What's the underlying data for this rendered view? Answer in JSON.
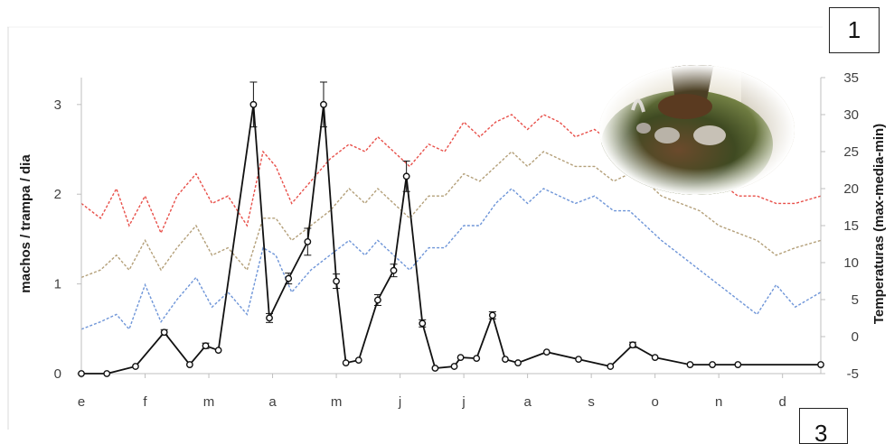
{
  "panel_labels": {
    "top_right": "1",
    "bottom_right": "3"
  },
  "photo_inset": {
    "icon": "trunk-photo-icon",
    "description_shown": false
  },
  "chart_data": {
    "type": "line",
    "title": "",
    "xlabel": "",
    "ylabel": "machos / trampa / dia",
    "y2label": "Temperaturas (max-media-min)",
    "ylim": [
      0,
      3.3
    ],
    "y2lim": [
      -5,
      35
    ],
    "yticks": [
      0,
      1,
      2,
      3
    ],
    "y2ticks": [
      -5,
      0,
      5,
      10,
      15,
      20,
      25,
      30,
      35
    ],
    "month_labels": [
      "e",
      "f",
      "m",
      "a",
      "m",
      "j",
      "j",
      "a",
      "s",
      "o",
      "n",
      "d"
    ],
    "xlim": [
      0,
      11.6
    ],
    "grid": false,
    "legend": "none",
    "captures": {
      "name": "",
      "color": "#111111",
      "x": [
        0,
        0.4,
        0.85,
        1.3,
        1.7,
        1.95,
        2.15,
        2.7,
        2.95,
        3.25,
        3.55,
        3.8,
        4.0,
        4.15,
        4.35,
        4.65,
        4.9,
        5.1,
        5.35,
        5.55,
        5.85,
        5.95,
        6.2,
        6.45,
        6.65,
        6.85,
        7.3,
        7.8,
        8.3,
        8.65,
        9.0,
        9.55,
        9.9,
        10.3,
        11.6
      ],
      "y": [
        0,
        0,
        0.08,
        0.46,
        0.1,
        0.31,
        0.26,
        3.0,
        0.62,
        1.06,
        1.47,
        3.0,
        1.03,
        0.12,
        0.15,
        0.82,
        1.15,
        2.2,
        0.56,
        0.06,
        0.08,
        0.18,
        0.17,
        0.65,
        0.16,
        0.12,
        0.24,
        0.16,
        0.08,
        0.32,
        0.18,
        0.1,
        0.1,
        0.1,
        0.1
      ],
      "error": [
        0,
        0,
        0,
        0.03,
        0.02,
        0.03,
        0.02,
        0.25,
        0.05,
        0.06,
        0.15,
        0.25,
        0.08,
        0.02,
        0.02,
        0.06,
        0.07,
        0.17,
        0.04,
        0.01,
        0.01,
        0.02,
        0.02,
        0.04,
        0.02,
        0.01,
        0.02,
        0.02,
        0.01,
        0.03,
        0.02,
        0.01,
        0.01,
        0.01,
        0.01
      ]
    },
    "temperature_series": [
      {
        "name": "max",
        "color": "#e8504a",
        "x": [
          0,
          0.3,
          0.55,
          0.75,
          1.0,
          1.25,
          1.5,
          1.8,
          2.05,
          2.3,
          2.6,
          2.85,
          3.05,
          3.3,
          3.6,
          3.9,
          4.2,
          4.45,
          4.65,
          4.9,
          5.15,
          5.45,
          5.7,
          6.0,
          6.25,
          6.5,
          6.75,
          7.0,
          7.25,
          7.5,
          7.75,
          8.05,
          8.35,
          8.6,
          8.85,
          9.1,
          9.4,
          9.7,
          10.0,
          10.3,
          10.6,
          10.9,
          11.2,
          11.6
        ],
        "y": [
          18,
          16,
          20,
          15,
          19,
          14,
          19,
          22,
          18,
          19,
          15,
          25,
          23,
          18,
          21,
          24,
          26,
          25,
          27,
          25,
          23,
          26,
          25,
          29,
          27,
          29,
          30,
          28,
          30,
          29,
          27,
          28,
          26,
          28,
          27,
          26,
          24,
          22,
          21,
          19,
          19,
          18,
          18,
          19
        ]
      },
      {
        "name": "media",
        "color": "#b4a07a",
        "x": [
          0,
          0.3,
          0.55,
          0.75,
          1.0,
          1.25,
          1.5,
          1.8,
          2.05,
          2.3,
          2.6,
          2.85,
          3.05,
          3.3,
          3.6,
          3.9,
          4.2,
          4.45,
          4.65,
          4.9,
          5.15,
          5.45,
          5.7,
          6.0,
          6.25,
          6.5,
          6.75,
          7.0,
          7.25,
          7.5,
          7.75,
          8.05,
          8.35,
          8.6,
          8.85,
          9.1,
          9.4,
          9.7,
          10.0,
          10.3,
          10.6,
          10.9,
          11.2,
          11.6
        ],
        "y": [
          8,
          9,
          11,
          9,
          13,
          9,
          12,
          15,
          11,
          12,
          9,
          16,
          16,
          13,
          15,
          17,
          20,
          18,
          20,
          18,
          16,
          19,
          19,
          22,
          21,
          23,
          25,
          23,
          25,
          24,
          23,
          23,
          21,
          22,
          21,
          19,
          18,
          17,
          15,
          14,
          13,
          11,
          12,
          13
        ]
      },
      {
        "name": "min",
        "color": "#6e95d8",
        "x": [
          0,
          0.3,
          0.55,
          0.75,
          1.0,
          1.25,
          1.5,
          1.8,
          2.05,
          2.3,
          2.6,
          2.85,
          3.05,
          3.3,
          3.6,
          3.9,
          4.2,
          4.45,
          4.65,
          4.9,
          5.15,
          5.45,
          5.7,
          6.0,
          6.25,
          6.5,
          6.75,
          7.0,
          7.25,
          7.5,
          7.75,
          8.05,
          8.35,
          8.6,
          8.85,
          9.1,
          9.4,
          9.7,
          10.0,
          10.3,
          10.6,
          10.9,
          11.2,
          11.6
        ],
        "y": [
          1,
          2,
          3,
          1,
          7,
          2,
          5,
          8,
          4,
          6,
          3,
          12,
          11,
          6,
          9,
          11,
          13,
          11,
          13,
          11,
          9,
          12,
          12,
          15,
          15,
          18,
          20,
          18,
          20,
          19,
          18,
          19,
          17,
          17,
          15,
          13,
          11,
          9,
          7,
          5,
          3,
          7,
          4,
          6
        ]
      }
    ]
  }
}
